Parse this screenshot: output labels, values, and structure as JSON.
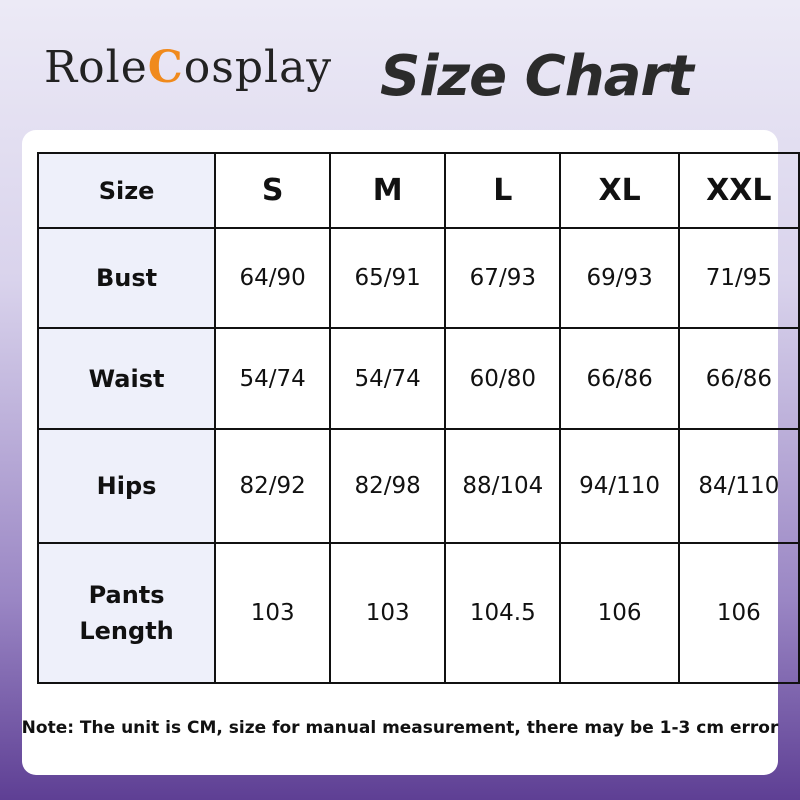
{
  "header": {
    "brand": "RoleCosplay",
    "title": "Size Chart"
  },
  "table": {
    "header": [
      "Size",
      "S",
      "M",
      "L",
      "XL",
      "XXL"
    ],
    "rows": [
      [
        "Bust",
        "64/90",
        "65/91",
        "67/93",
        "69/93",
        "71/95"
      ],
      [
        "Waist",
        "54/74",
        "54/74",
        "60/80",
        "66/86",
        "66/86"
      ],
      [
        "Hips",
        "82/92",
        "82/98",
        "88/104",
        "94/110",
        "84/110"
      ],
      [
        "Pants Length",
        "103",
        "103",
        "104.5",
        "106",
        "106"
      ]
    ]
  },
  "note": "Note: The unit is CM, size for manual measurement, there may be 1-3 cm error"
}
